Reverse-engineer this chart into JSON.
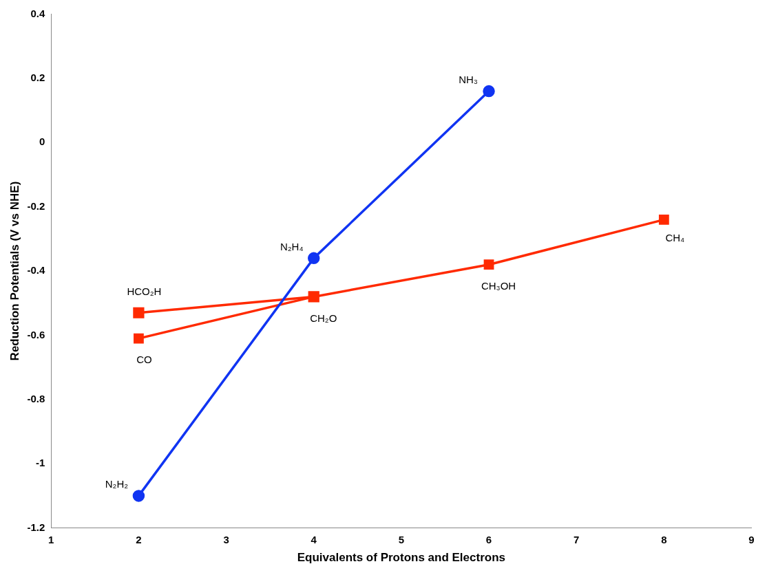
{
  "chart_data": {
    "type": "line",
    "xlabel": "Equivalents of Protons and Electrons",
    "ylabel": "Reduction Potentials (V vs NHE)",
    "xlim": [
      1,
      9
    ],
    "xticks": [
      1,
      2,
      3,
      4,
      5,
      6,
      7,
      8,
      9
    ],
    "ylim": [
      -1.2,
      0.4
    ],
    "yticks": [
      -1.2,
      -1,
      -0.8,
      -0.6,
      -0.4,
      -0.2,
      0,
      0.2,
      0.4
    ],
    "grid": false,
    "legend": false,
    "series": [
      {
        "color": "#1034f2",
        "marker": "circle",
        "x": [
          2,
          4,
          6
        ],
        "values": [
          -1.1,
          -0.36,
          0.16
        ]
      },
      {
        "color": "#ff2a00",
        "marker": "square",
        "x": [
          2,
          4,
          6,
          8
        ],
        "values": [
          -0.61,
          -0.48,
          -0.38,
          -0.24
        ]
      },
      {
        "color": "#ff2a00",
        "marker": "square",
        "x": [
          2,
          4
        ],
        "values": [
          -0.53,
          -0.48
        ]
      }
    ],
    "annotations": [
      {
        "text": "N₂H₂",
        "x": 2,
        "y": -1.1
      },
      {
        "text": "N₂H₄",
        "x": 4,
        "y": -0.36
      },
      {
        "text": "NH₃",
        "x": 6,
        "y": 0.16
      },
      {
        "text": "CO",
        "x": 2,
        "y": -0.61
      },
      {
        "text": "HCO₂H",
        "x": 2,
        "y": -0.53
      },
      {
        "text": "CH₂O",
        "x": 4,
        "y": -0.48
      },
      {
        "text": "CH₃OH",
        "x": 6,
        "y": -0.38
      },
      {
        "text": "CH₄",
        "x": 8,
        "y": -0.24
      }
    ]
  }
}
